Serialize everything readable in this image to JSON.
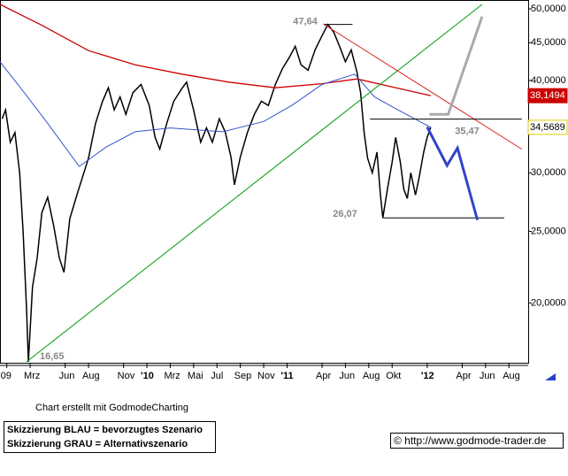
{
  "chart_data": {
    "type": "line",
    "log_y": true,
    "xlim": [
      -0.58,
      44.65
    ],
    "ylim": [
      16.6,
      51.4
    ],
    "xticks": [
      {
        "value": 0,
        "label": "09"
      },
      {
        "value": 2,
        "label": "Mrz"
      },
      {
        "value": 5,
        "label": "Jun"
      },
      {
        "value": 7,
        "label": "Aug"
      },
      {
        "value": 10,
        "label": "Nov"
      },
      {
        "value": 12,
        "label": "'10"
      },
      {
        "value": 14,
        "label": "Mrz"
      },
      {
        "value": 16,
        "label": "Mai"
      },
      {
        "value": 18,
        "label": "Jul"
      },
      {
        "value": 20,
        "label": "Sep"
      },
      {
        "value": 22,
        "label": "Nov"
      },
      {
        "value": 24,
        "label": "'11"
      },
      {
        "value": 27,
        "label": "Apr"
      },
      {
        "value": 29,
        "label": "Jun"
      },
      {
        "value": 31,
        "label": "Aug"
      },
      {
        "value": 33,
        "label": "Okt"
      },
      {
        "value": 36,
        "label": "'12"
      },
      {
        "value": 39,
        "label": "Apr"
      },
      {
        "value": 41,
        "label": "Jun"
      },
      {
        "value": 43,
        "label": "Aug"
      }
    ],
    "yticks": [
      {
        "value": 50,
        "label": "50,0000"
      },
      {
        "value": 45,
        "label": "45,0000"
      },
      {
        "value": 40,
        "label": "40,0000"
      },
      {
        "value": 30,
        "label": "30,0000"
      },
      {
        "value": 25,
        "label": "25,0000"
      },
      {
        "value": 20,
        "label": "20,0000"
      }
    ],
    "series": [
      {
        "color": "#000000",
        "width": 1.5,
        "x": [
          -0.4,
          -0.1,
          0.3,
          0.7,
          1.1,
          1.4,
          1.7,
          1.85,
          2.2,
          2.6,
          3.0,
          3.5,
          4.0,
          4.5,
          4.9,
          5.4,
          6.0,
          6.6,
          7.0,
          7.6,
          8.2,
          8.7,
          9.2,
          9.7,
          10.2,
          10.8,
          11.5,
          12.2,
          12.7,
          13.1,
          13.7,
          14.3,
          15.0,
          15.4,
          16.0,
          16.6,
          17.1,
          17.6,
          18.2,
          18.7,
          19.2,
          19.5,
          20.0,
          20.6,
          21.2,
          21.8,
          22.4,
          23.0,
          23.6,
          24.2,
          24.7,
          25.2,
          25.8,
          26.4,
          27.0,
          27.5,
          28.0,
          28.5,
          29.0,
          29.5,
          30.0,
          30.3,
          30.6,
          30.9,
          31.3,
          31.7,
          32.0,
          32.2,
          32.6,
          33.0,
          33.3,
          33.7,
          34.0,
          34.3,
          34.6,
          35.0,
          35.3,
          35.7,
          36.0,
          36.3
        ],
        "values": [
          35.5,
          36.5,
          33.0,
          34.0,
          30.0,
          25.0,
          19.5,
          16.65,
          21.0,
          23.0,
          26.5,
          27.8,
          25.5,
          23.0,
          22.0,
          26.0,
          28.0,
          30.0,
          31.4,
          35.0,
          37.5,
          39.1,
          36.5,
          38.0,
          36.0,
          38.5,
          39.5,
          37.0,
          33.5,
          32.3,
          35.0,
          37.5,
          39.0,
          39.8,
          36.5,
          33.0,
          34.5,
          33.0,
          35.5,
          34.1,
          31.5,
          28.9,
          31.5,
          34.0,
          36.0,
          37.5,
          37.0,
          39.5,
          41.5,
          43.0,
          44.5,
          42.0,
          41.3,
          44.0,
          46.0,
          47.64,
          46.5,
          44.5,
          42.4,
          44.0,
          41.0,
          38.5,
          34.0,
          31.4,
          30.0,
          32.0,
          28.0,
          26.07,
          28.5,
          31.0,
          33.5,
          31.0,
          28.5,
          27.7,
          30.0,
          28.0,
          29.5,
          32.0,
          33.5,
          34.5689
        ]
      },
      {
        "color": "#cc0000",
        "width": 1.3,
        "x": [
          -0.58,
          3,
          7,
          11,
          15,
          19,
          23,
          27,
          30,
          33,
          36.3
        ],
        "values": [
          50.7,
          47.5,
          43.9,
          42.0,
          40.8,
          39.8,
          39.1,
          39.6,
          40.2,
          39.2,
          38.1494
        ]
      },
      {
        "color": "#3355cc",
        "width": 1,
        "x": [
          -0.58,
          1.5,
          3.5,
          6.2,
          8.5,
          11,
          14,
          18.5,
          22,
          24.4,
          27,
          29.8,
          31.5,
          33.5,
          36.3
        ],
        "values": [
          42.4,
          38.5,
          35.0,
          30.6,
          32.5,
          34.1,
          34.5,
          34.1,
          35.2,
          37.0,
          39.5,
          40.8,
          38.0,
          36.5,
          34.5689
        ]
      },
      {
        "color": "#009900",
        "width": 1,
        "x": [
          1.7,
          40.7
        ],
        "values": [
          16.65,
          50.7
        ]
      },
      {
        "color": "#dd2222",
        "width": 1,
        "x": [
          27.1,
          44.1
        ],
        "values": [
          47.7,
          32.3
        ]
      },
      {
        "color": "#000000",
        "width": 1,
        "x": [
          27.2,
          29.6
        ],
        "values": [
          47.64,
          47.64
        ]
      },
      {
        "color": "#000000",
        "width": 1,
        "x": [
          31.1,
          44.1
        ],
        "values": [
          35.47,
          35.47
        ]
      },
      {
        "color": "#000000",
        "width": 1,
        "x": [
          32.2,
          42.6
        ],
        "values": [
          26.07,
          26.07
        ]
      },
      {
        "color": "#aaaaaa",
        "width": 3,
        "x": [
          36.2,
          37.8,
          40.7
        ],
        "values": [
          36.0,
          36.0,
          48.8
        ]
      },
      {
        "color": "#3344cc",
        "width": 3,
        "x": [
          36.0,
          37.7,
          38.6,
          40.3
        ],
        "values": [
          34.6,
          30.7,
          32.4,
          25.9
        ]
      }
    ],
    "annotations": [
      {
        "value": 47.64,
        "label": "47,64"
      },
      {
        "value": 26.07,
        "label": "26,07"
      },
      {
        "value": 16.65,
        "label": "16,65"
      },
      {
        "value": 35.47,
        "label": "35,47"
      }
    ],
    "price_boxes": [
      {
        "value": 38.1494,
        "label": "38,1494",
        "color": "#cc0000"
      },
      {
        "value": 34.5689,
        "label": "34,5689",
        "color": "#ffffff"
      }
    ]
  },
  "footer": {
    "credit": "Chart erstellt mit GodmodeCharting",
    "blue": "Skizzierung BLAU = bevorzugtes Szenario",
    "gray": "Skizzierung GRAU = Alternativszenario",
    "url": "© http://www.godmode-trader.de"
  }
}
